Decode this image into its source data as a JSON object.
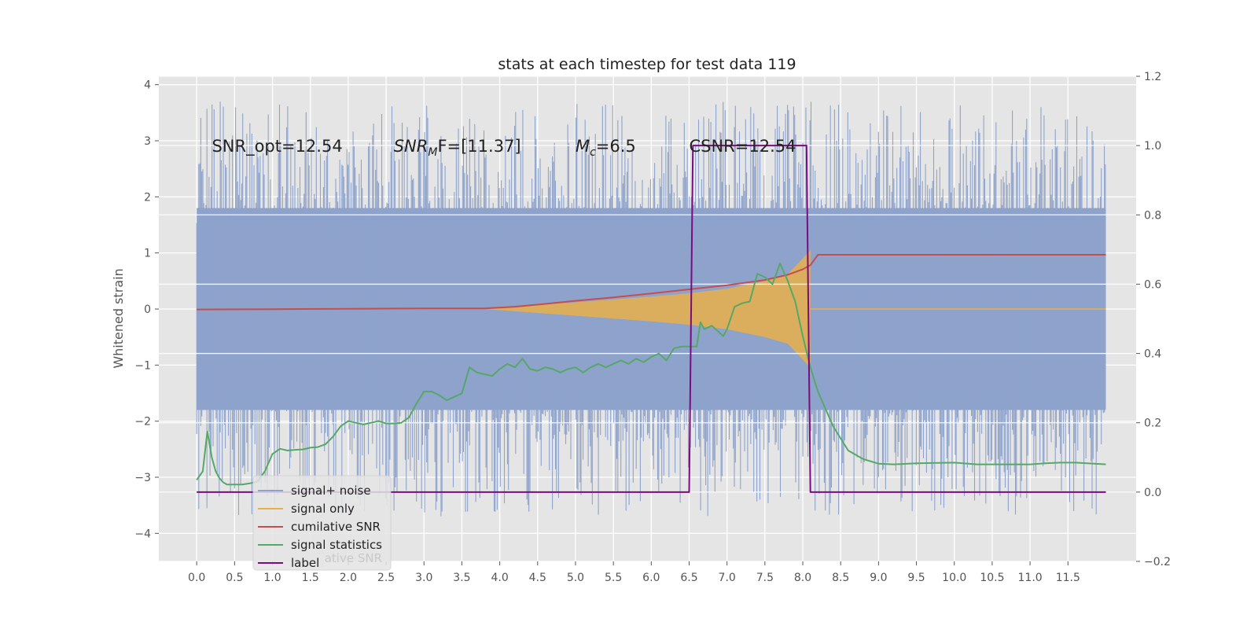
{
  "chart_data": {
    "type": "line",
    "title": "stats at each timestep for test data 119",
    "xlabel": "",
    "ylabel": "Whitened strain",
    "y2label": "",
    "xlim": [
      -0.5,
      12.4
    ],
    "ylim": [
      -4.5,
      4.15
    ],
    "y2lim": [
      -0.2,
      1.2
    ],
    "x_ticks": [
      "0.0",
      "0.5",
      "1.0",
      "1.5",
      "2.0",
      "2.5",
      "3.0",
      "3.5",
      "4.0",
      "4.5",
      "5.0",
      "5.5",
      "6.0",
      "6.5",
      "7.0",
      "7.5",
      "8.0",
      "8.5",
      "9.0",
      "9.5",
      "10.0",
      "10.5",
      "11.0",
      "11.5"
    ],
    "y_ticks": [
      "−4",
      "−3",
      "−2",
      "−1",
      "0",
      "1",
      "2",
      "3",
      "4"
    ],
    "y2_ticks": [
      "−0.2",
      "0.0",
      "0.2",
      "0.4",
      "0.6",
      "0.8",
      "1.0",
      "1.2"
    ],
    "grid": true,
    "legend_position": "lower-left",
    "annotations": [
      {
        "text": "SNR_opt=12.54",
        "x": 0.2,
        "y": 2.9
      },
      {
        "text": "SNR_M F=[11.37]",
        "main": "SNR",
        "sub": "M",
        "after": "F=[11.37]",
        "x": 2.6,
        "y": 2.9
      },
      {
        "text": "M_c=6.5",
        "main": "M",
        "sub": "c",
        "after": "=6.5",
        "x": 5.0,
        "y": 2.9
      },
      {
        "text": "CSNR=12.54",
        "x": 6.5,
        "y": 2.9
      }
    ],
    "series": [
      {
        "name": "signal+ noise",
        "color": "#8ea3cb",
        "axis": "left",
        "kind": "noise",
        "x_range": [
          0.0,
          12.0
        ],
        "band": [
          -1.8,
          1.8
        ]
      },
      {
        "name": "signal only",
        "color": "#e8b04a",
        "axis": "left",
        "kind": "chirp",
        "envelope_x": [
          3.8,
          4.5,
          5.0,
          5.5,
          6.0,
          6.5,
          7.0,
          7.5,
          7.8,
          8.0,
          8.1
        ],
        "envelope_y": [
          0.0,
          0.07,
          0.12,
          0.17,
          0.22,
          0.28,
          0.36,
          0.5,
          0.62,
          0.9,
          1.05
        ]
      },
      {
        "name": "cumilative SNR",
        "color": "#c44e52",
        "axis": "right",
        "x": [
          0.0,
          1.0,
          2.0,
          3.0,
          3.8,
          4.2,
          4.6,
          5.0,
          5.5,
          6.0,
          6.5,
          7.0,
          7.5,
          7.8,
          8.0,
          8.1,
          8.2,
          12.0
        ],
        "y": [
          0.527,
          0.528,
          0.529,
          0.53,
          0.53,
          0.535,
          0.543,
          0.552,
          0.562,
          0.573,
          0.585,
          0.597,
          0.612,
          0.627,
          0.643,
          0.655,
          0.685,
          0.685
        ]
      },
      {
        "name": "signal statistics",
        "color": "#55a868",
        "axis": "right",
        "x": [
          0.0,
          0.08,
          0.14,
          0.2,
          0.25,
          0.3,
          0.35,
          0.4,
          0.5,
          0.6,
          0.7,
          0.8,
          0.9,
          1.0,
          1.1,
          1.2,
          1.3,
          1.4,
          1.5,
          1.6,
          1.7,
          1.8,
          1.9,
          2.0,
          2.1,
          2.2,
          2.3,
          2.4,
          2.5,
          2.6,
          2.7,
          2.8,
          2.9,
          3.0,
          3.1,
          3.2,
          3.3,
          3.4,
          3.5,
          3.6,
          3.7,
          3.8,
          3.9,
          4.0,
          4.1,
          4.2,
          4.3,
          4.4,
          4.5,
          4.6,
          4.7,
          4.8,
          4.9,
          5.0,
          5.1,
          5.2,
          5.3,
          5.4,
          5.5,
          5.6,
          5.7,
          5.8,
          5.9,
          6.0,
          6.1,
          6.2,
          6.3,
          6.4,
          6.5,
          6.6,
          6.65,
          6.7,
          6.8,
          6.9,
          6.95,
          7.0,
          7.1,
          7.2,
          7.3,
          7.4,
          7.5,
          7.6,
          7.7,
          7.8,
          7.9,
          8.0,
          8.1,
          8.2,
          8.4,
          8.6,
          8.8,
          9.0,
          9.2,
          9.5,
          10.0,
          10.3,
          10.5,
          11.0,
          11.2,
          11.4,
          11.6,
          12.0
        ],
        "y": [
          0.035,
          0.06,
          0.175,
          0.1,
          0.06,
          0.04,
          0.028,
          0.022,
          0.022,
          0.022,
          0.025,
          0.03,
          0.06,
          0.11,
          0.125,
          0.12,
          0.122,
          0.123,
          0.128,
          0.13,
          0.138,
          0.16,
          0.19,
          0.205,
          0.2,
          0.195,
          0.2,
          0.205,
          0.198,
          0.198,
          0.2,
          0.215,
          0.255,
          0.29,
          0.29,
          0.28,
          0.265,
          0.275,
          0.285,
          0.36,
          0.345,
          0.34,
          0.335,
          0.355,
          0.37,
          0.36,
          0.385,
          0.355,
          0.35,
          0.36,
          0.355,
          0.345,
          0.355,
          0.36,
          0.345,
          0.36,
          0.37,
          0.36,
          0.37,
          0.38,
          0.37,
          0.385,
          0.375,
          0.39,
          0.4,
          0.38,
          0.415,
          0.42,
          0.42,
          0.42,
          0.49,
          0.47,
          0.48,
          0.46,
          0.45,
          0.47,
          0.535,
          0.545,
          0.55,
          0.63,
          0.62,
          0.6,
          0.66,
          0.61,
          0.55,
          0.45,
          0.36,
          0.29,
          0.19,
          0.12,
          0.095,
          0.082,
          0.08,
          0.083,
          0.085,
          0.08,
          0.08,
          0.08,
          0.083,
          0.085,
          0.085,
          0.08
        ]
      },
      {
        "name": "label",
        "color": "#7b0c7f",
        "axis": "right",
        "x": [
          0.0,
          6.5,
          6.55,
          8.05,
          8.1,
          12.0
        ],
        "y": [
          0.0,
          0.0,
          1.0,
          1.0,
          0.0,
          0.0
        ]
      }
    ],
    "legend_hidden_text": "cumilative SNR"
  }
}
